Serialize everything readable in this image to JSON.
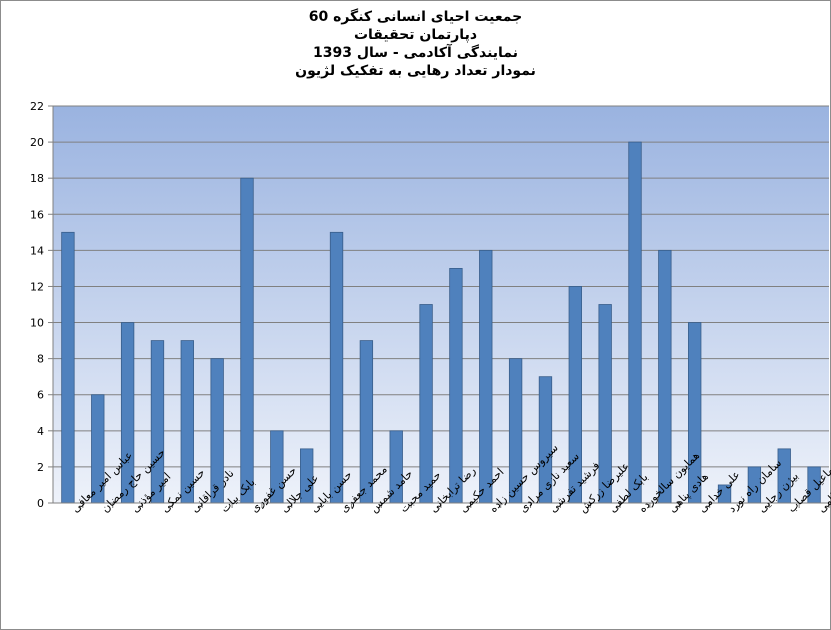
{
  "chart_data": {
    "type": "bar",
    "title_lines": [
      "جمعیت احیای انسانی کنگره 60",
      "دپارتمان تحقیقات",
      "نمایندگی آکادمی - سال 1393",
      "نمودار تعداد رهایی به تفکیک لژیون"
    ],
    "xlabel": "",
    "ylabel": "",
    "ylim": [
      0,
      22
    ],
    "y_ticks": [
      0,
      2,
      4,
      6,
      8,
      10,
      12,
      14,
      16,
      18,
      20,
      22
    ],
    "grid": true,
    "legend": "none",
    "colors": {
      "bar": "#4f81bd",
      "bar_edge": "#385d8a",
      "plot_top": "#9ab3e0",
      "plot_bottom": "#eef2fa",
      "grid": "#808080",
      "axis": "#808080"
    },
    "categories": [
      "عباس امیر معافی",
      "حسین حاج رمضان",
      "امیر مؤذنی",
      "حسین نمکی",
      "نادر قراقانی",
      "بابک بیات",
      "حسن غفوری",
      "علی جلالی",
      "حسن بابایی",
      "محمد جعفری",
      "حامد شمس",
      "حمید محبت",
      "رضا ترابخانی",
      "احمد حکیمی",
      "سیروس حسین زاده",
      "سعید نازی مرادی",
      "فرشید تفرشی",
      "علیرضا زرکش",
      "بابک لطفی",
      "همایون سالخورده",
      "هادی پناهی",
      "علی خدامی",
      "سامان راه نورد",
      "بیژن رجایی",
      "میثم اسماعیل قصاب",
      "کاوه انتظامی"
    ],
    "values": [
      15,
      6,
      10,
      9,
      9,
      8,
      18,
      4,
      3,
      15,
      9,
      4,
      11,
      13,
      14,
      8,
      7,
      12,
      11,
      20,
      14,
      10,
      1,
      2,
      3,
      2
    ]
  }
}
